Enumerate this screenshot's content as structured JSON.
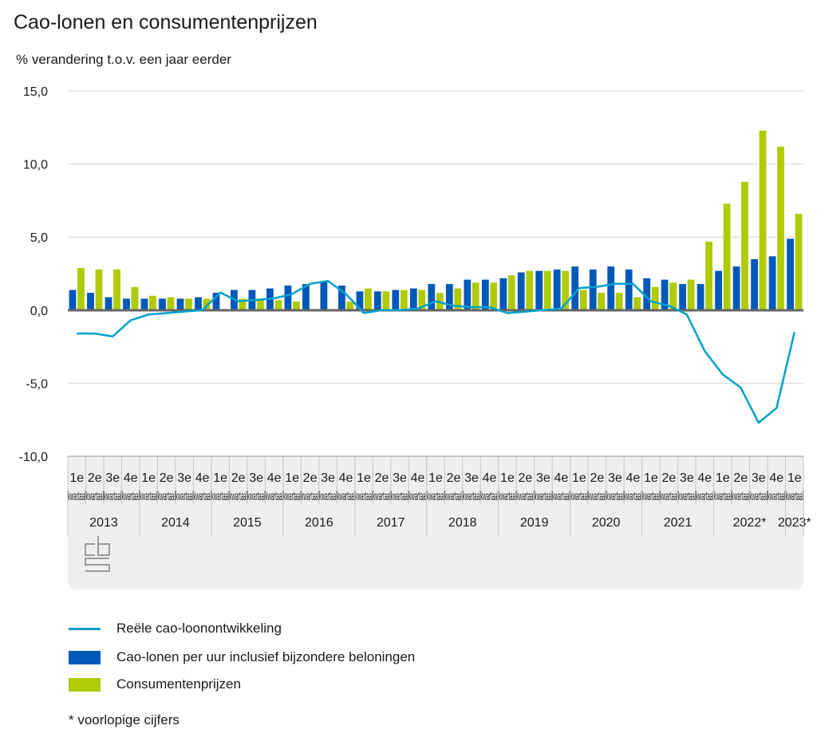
{
  "chart_data": {
    "type": "bar",
    "title": "Cao-lonen en consumentenprijzen",
    "subtitle": "% verandering t.o.v. een jaar eerder",
    "xlabel": "",
    "ylabel": "% verandering t.o.v. een jaar eerder",
    "ylim": [
      -10,
      15
    ],
    "yticks": [
      15,
      10,
      5,
      0,
      -5,
      -10
    ],
    "ytick_labels": [
      "15,0",
      "10,0",
      "5,0",
      "0,0",
      "-5,0",
      "-10,0"
    ],
    "grid": true,
    "quarter_labels": [
      "1e",
      "2e",
      "3e",
      "4e",
      "1e",
      "2e",
      "3e",
      "4e",
      "1e",
      "2e",
      "3e",
      "4e",
      "1e",
      "2e",
      "3e",
      "4e",
      "1e",
      "2e",
      "3e",
      "4e",
      "1e",
      "2e",
      "3e",
      "4e",
      "1e",
      "2e",
      "3e",
      "4e",
      "1e",
      "2e",
      "3e",
      "4e",
      "1e",
      "2e",
      "3e",
      "4e",
      "1e",
      "2e",
      "3e",
      "4e",
      "1e"
    ],
    "quarter_suffix": "kwartaal",
    "years": [
      {
        "label": "2013",
        "quarters": 4
      },
      {
        "label": "2014",
        "quarters": 4
      },
      {
        "label": "2015",
        "quarters": 4
      },
      {
        "label": "2016",
        "quarters": 4
      },
      {
        "label": "2017",
        "quarters": 4
      },
      {
        "label": "2018",
        "quarters": 4
      },
      {
        "label": "2019",
        "quarters": 4
      },
      {
        "label": "2020",
        "quarters": 4
      },
      {
        "label": "2021",
        "quarters": 4
      },
      {
        "label": "2022*",
        "quarters": 4
      },
      {
        "label": "2023*",
        "quarters": 1
      }
    ],
    "series": [
      {
        "name": "Cao-lonen per uur inclusief bijzondere beloningen",
        "kind": "bar",
        "color": "#0058b8",
        "values": [
          1.4,
          1.2,
          0.9,
          0.8,
          0.8,
          0.8,
          0.8,
          0.9,
          1.2,
          1.4,
          1.4,
          1.5,
          1.7,
          1.8,
          2.0,
          1.7,
          1.3,
          1.3,
          1.4,
          1.5,
          1.8,
          1.8,
          2.1,
          2.1,
          2.2,
          2.6,
          2.7,
          2.8,
          3.0,
          2.8,
          3.0,
          2.8,
          2.2,
          2.1,
          1.8,
          1.8,
          2.7,
          3.0,
          3.5,
          3.7,
          4.9
        ]
      },
      {
        "name": "Consumentenprijzen",
        "kind": "bar",
        "color": "#afcb05",
        "values": [
          2.9,
          2.8,
          2.8,
          1.6,
          1.0,
          0.9,
          0.8,
          0.8,
          0.1,
          0.8,
          0.7,
          0.7,
          0.6,
          0.1,
          0.1,
          0.6,
          1.5,
          1.3,
          1.4,
          1.4,
          1.2,
          1.5,
          1.9,
          1.9,
          2.4,
          2.7,
          2.7,
          2.7,
          1.4,
          1.2,
          1.2,
          0.9,
          1.6,
          1.9,
          2.1,
          4.7,
          7.3,
          8.8,
          12.3,
          11.2,
          6.6
        ]
      },
      {
        "name": "Reële cao-loonontwikkeling",
        "kind": "line",
        "color": "#00a1cd",
        "values": [
          -1.6,
          -1.6,
          -1.8,
          -0.7,
          -0.3,
          -0.2,
          -0.1,
          0.0,
          1.2,
          0.6,
          0.7,
          0.8,
          1.1,
          1.8,
          2.0,
          1.1,
          -0.2,
          0.0,
          0.0,
          0.1,
          0.6,
          0.3,
          0.2,
          0.2,
          -0.2,
          -0.1,
          0.0,
          0.1,
          1.5,
          1.6,
          1.8,
          1.8,
          0.6,
          0.3,
          -0.3,
          -2.8,
          -4.4,
          -5.3,
          -7.7,
          -6.7,
          -1.5
        ]
      }
    ],
    "legend_position": "bottom-left",
    "footnote": "* voorlopige cijfers"
  },
  "header": {
    "title": "Cao-lonen en consumentenprijzen",
    "subtitle": "% verandering t.o.v. een jaar eerder"
  },
  "legend": {
    "items": [
      {
        "label": "Reële cao-loonontwikkeling",
        "color": "#00a1cd",
        "kind": "line"
      },
      {
        "label": "Cao-lonen per uur inclusief bijzondere beloningen",
        "color": "#0058b8",
        "kind": "bar"
      },
      {
        "label": "Consumentenprijzen",
        "color": "#afcb05",
        "kind": "bar"
      }
    ]
  },
  "note": "* voorlopige cijfers",
  "logo": "cbs-logo"
}
